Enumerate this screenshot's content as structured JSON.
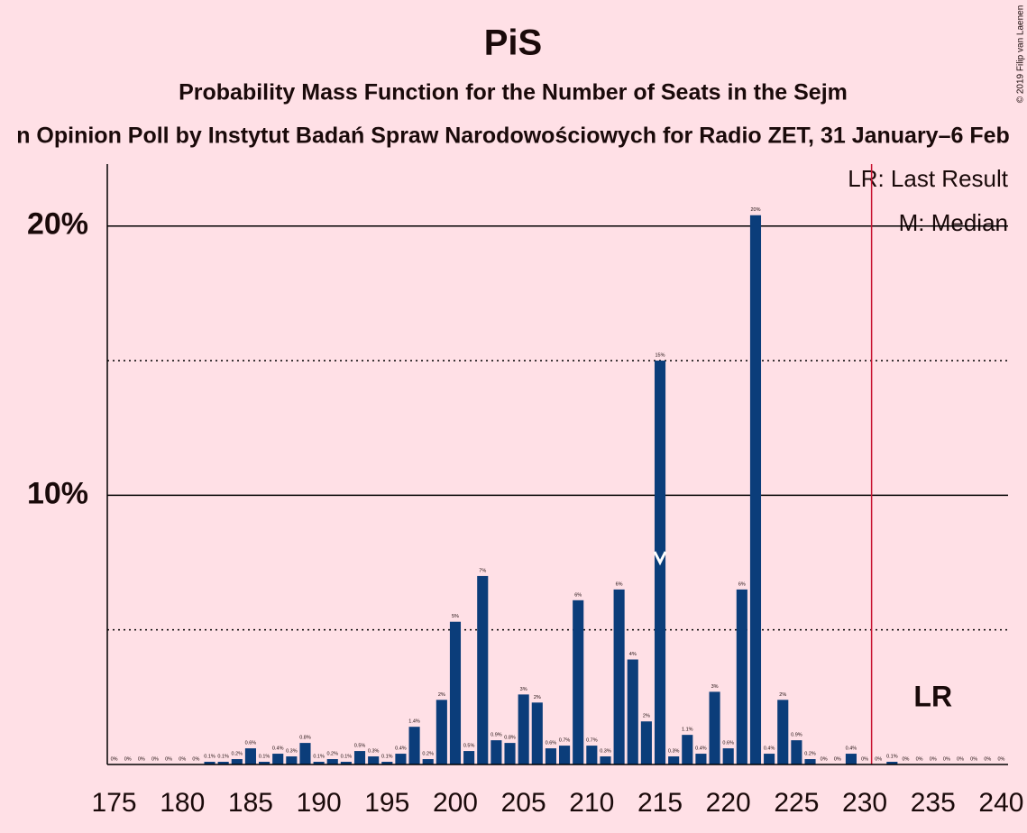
{
  "chart_data": {
    "type": "bar",
    "title": "PiS",
    "subtitle": "Probability Mass Function for the Number of Seats in the Sejm",
    "caption": "n Opinion Poll by Instytut Badań Spraw Narodowościowych for Radio ZET, 31 January–6 Feb",
    "x": [
      175,
      176,
      177,
      178,
      179,
      180,
      181,
      182,
      183,
      184,
      185,
      186,
      187,
      188,
      189,
      190,
      191,
      192,
      193,
      194,
      195,
      196,
      197,
      198,
      199,
      200,
      201,
      202,
      203,
      204,
      205,
      206,
      207,
      208,
      209,
      210,
      211,
      212,
      213,
      214,
      215,
      216,
      217,
      218,
      219,
      220,
      221,
      222,
      223,
      224,
      225,
      226,
      227,
      228,
      229,
      230,
      231,
      232,
      233,
      234,
      235,
      236,
      237,
      238,
      239,
      240
    ],
    "values": [
      0,
      0,
      0,
      0,
      0,
      0,
      0,
      0.1,
      0.1,
      0.2,
      0.6,
      0.1,
      0.4,
      0.3,
      0.8,
      0.1,
      0.2,
      0.1,
      0.5,
      0.3,
      0.1,
      0.4,
      1.4,
      0.2,
      2.4,
      5.3,
      0.5,
      7.0,
      0.9,
      0.8,
      2.6,
      2.3,
      0.6,
      0.7,
      6.1,
      0.7,
      0.3,
      6.5,
      3.9,
      1.6,
      15.0,
      0.3,
      1.1,
      0.4,
      2.7,
      0.6,
      6.5,
      20.4,
      0.4,
      2.4,
      0.9,
      0.2,
      0,
      0,
      0.4,
      0,
      0,
      0.1,
      0,
      0,
      0,
      0,
      0,
      0,
      0,
      0
    ],
    "value_labels": [
      "0%",
      "0%",
      "0%",
      "0%",
      "0%",
      "0%",
      "0%",
      "0.1%",
      "0.1%",
      "0.2%",
      "0.6%",
      "0.1%",
      "0.4%",
      "0.3%",
      "0.8%",
      "0.1%",
      "0.2%",
      "0.1%",
      "0.5%",
      "0.3%",
      "0.1%",
      "0.4%",
      "1.4%",
      "0.2%",
      "2%",
      "5%",
      "0.5%",
      "7%",
      "0.9%",
      "0.8%",
      "3%",
      "2%",
      "0.6%",
      "0.7%",
      "6%",
      "0.7%",
      "0.3%",
      "6%",
      "4%",
      "2%",
      "15%",
      "0.3%",
      "1.1%",
      "0.4%",
      "3%",
      "0.6%",
      "6%",
      "20%",
      "0.4%",
      "2%",
      "0.9%",
      "0.2%",
      "0%",
      "0%",
      "0.4%",
      "0%",
      "0%",
      "0.1%",
      "0%",
      "0%",
      "0%",
      "0%",
      "0%",
      "0%",
      "0%",
      "0%"
    ],
    "color": "#0b3d7a",
    "xlim": [
      174.5,
      240.5
    ],
    "xticks": [
      175,
      180,
      185,
      190,
      195,
      200,
      205,
      210,
      215,
      220,
      225,
      230,
      235,
      240
    ],
    "ylim": [
      0,
      22.3
    ],
    "yticks": [
      {
        "value": 10,
        "label": "10%"
      },
      {
        "value": 20,
        "label": "20%"
      }
    ],
    "minor_gridlines": [
      5,
      15
    ],
    "majority": 231,
    "majority_color": "#c8102e",
    "median": 215,
    "last_result": 235,
    "last_result_label": "LR",
    "legend": [
      "LR: Last Result",
      "M: Median"
    ]
  },
  "copyright": "© 2019 Filip van Laenen"
}
